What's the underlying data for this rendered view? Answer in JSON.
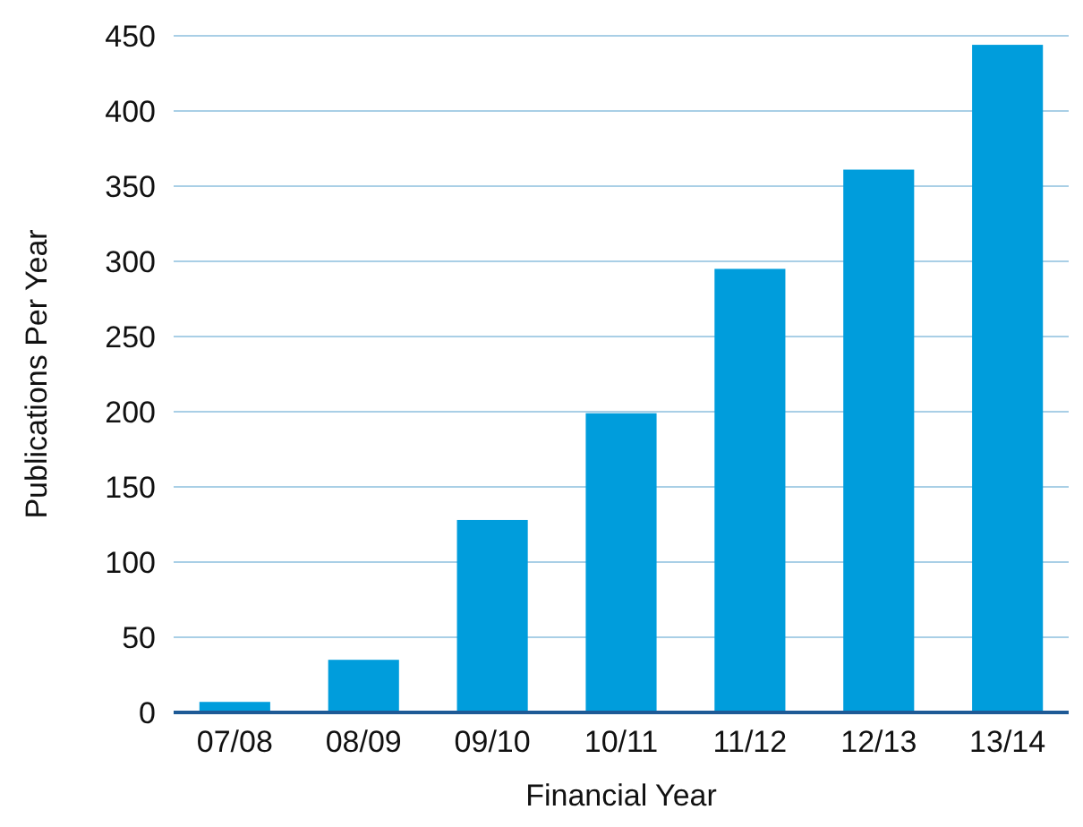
{
  "chart_data": {
    "type": "bar",
    "xlabel": "Financial Year",
    "ylabel": "Publications Per Year",
    "categories": [
      "07/08",
      "08/09",
      "09/10",
      "10/11",
      "11/12",
      "12/13",
      "13/14"
    ],
    "values": [
      7,
      35,
      128,
      199,
      295,
      361,
      444
    ],
    "color": "#009ddc",
    "ylim": [
      0,
      450
    ],
    "yticks": [
      0,
      50,
      100,
      150,
      200,
      250,
      300,
      350,
      400,
      450
    ],
    "grid": "y"
  }
}
